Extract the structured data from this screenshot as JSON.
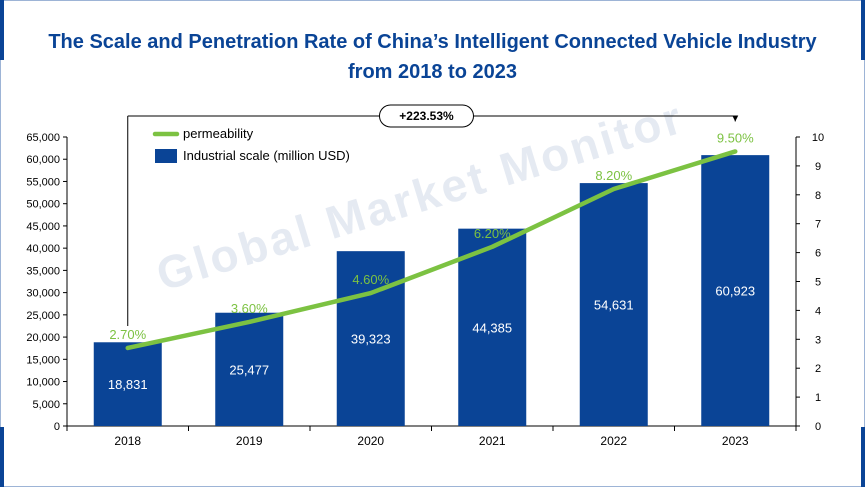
{
  "title_line1": "The Scale and Penetration Rate of China’s Intelligent Connected Vehicle Industry",
  "title_line2": "from 2018 to 2023",
  "watermark": "Global Market Monitor",
  "chart_data": {
    "type": "bar",
    "categories": [
      "2018",
      "2019",
      "2020",
      "2021",
      "2022",
      "2023"
    ],
    "series": [
      {
        "name": "Industrial scale (million USD)",
        "type": "bar",
        "axis": "left",
        "values": [
          18831,
          25477,
          39323,
          44385,
          54631,
          60923
        ],
        "labels": [
          "18,831",
          "25,477",
          "39,323",
          "44,385",
          "54,631",
          "60,923"
        ],
        "color": "#0a4496"
      },
      {
        "name": "permeability",
        "type": "line",
        "axis": "right",
        "values": [
          2.7,
          3.6,
          4.6,
          6.2,
          8.2,
          9.5
        ],
        "labels": [
          "2.70%",
          "3.60%",
          "4.60%",
          "6.20%",
          "8.20%",
          "9.50%"
        ],
        "color": "#7cc242"
      }
    ],
    "y_left": {
      "lim": [
        0,
        65000
      ],
      "ticks": [
        "0",
        "5,000",
        "10,000",
        "15,000",
        "20,000",
        "25,000",
        "30,000",
        "35,000",
        "40,000",
        "45,000",
        "50,000",
        "55,000",
        "60,000",
        "65,000"
      ]
    },
    "y_right": {
      "lim": [
        0,
        10
      ],
      "ticks": [
        "0",
        "1",
        "2",
        "3",
        "4",
        "5",
        "6",
        "7",
        "8",
        "9",
        "10"
      ]
    },
    "annotation": "+223.53%",
    "legend_position": "top-left",
    "grid": false
  }
}
